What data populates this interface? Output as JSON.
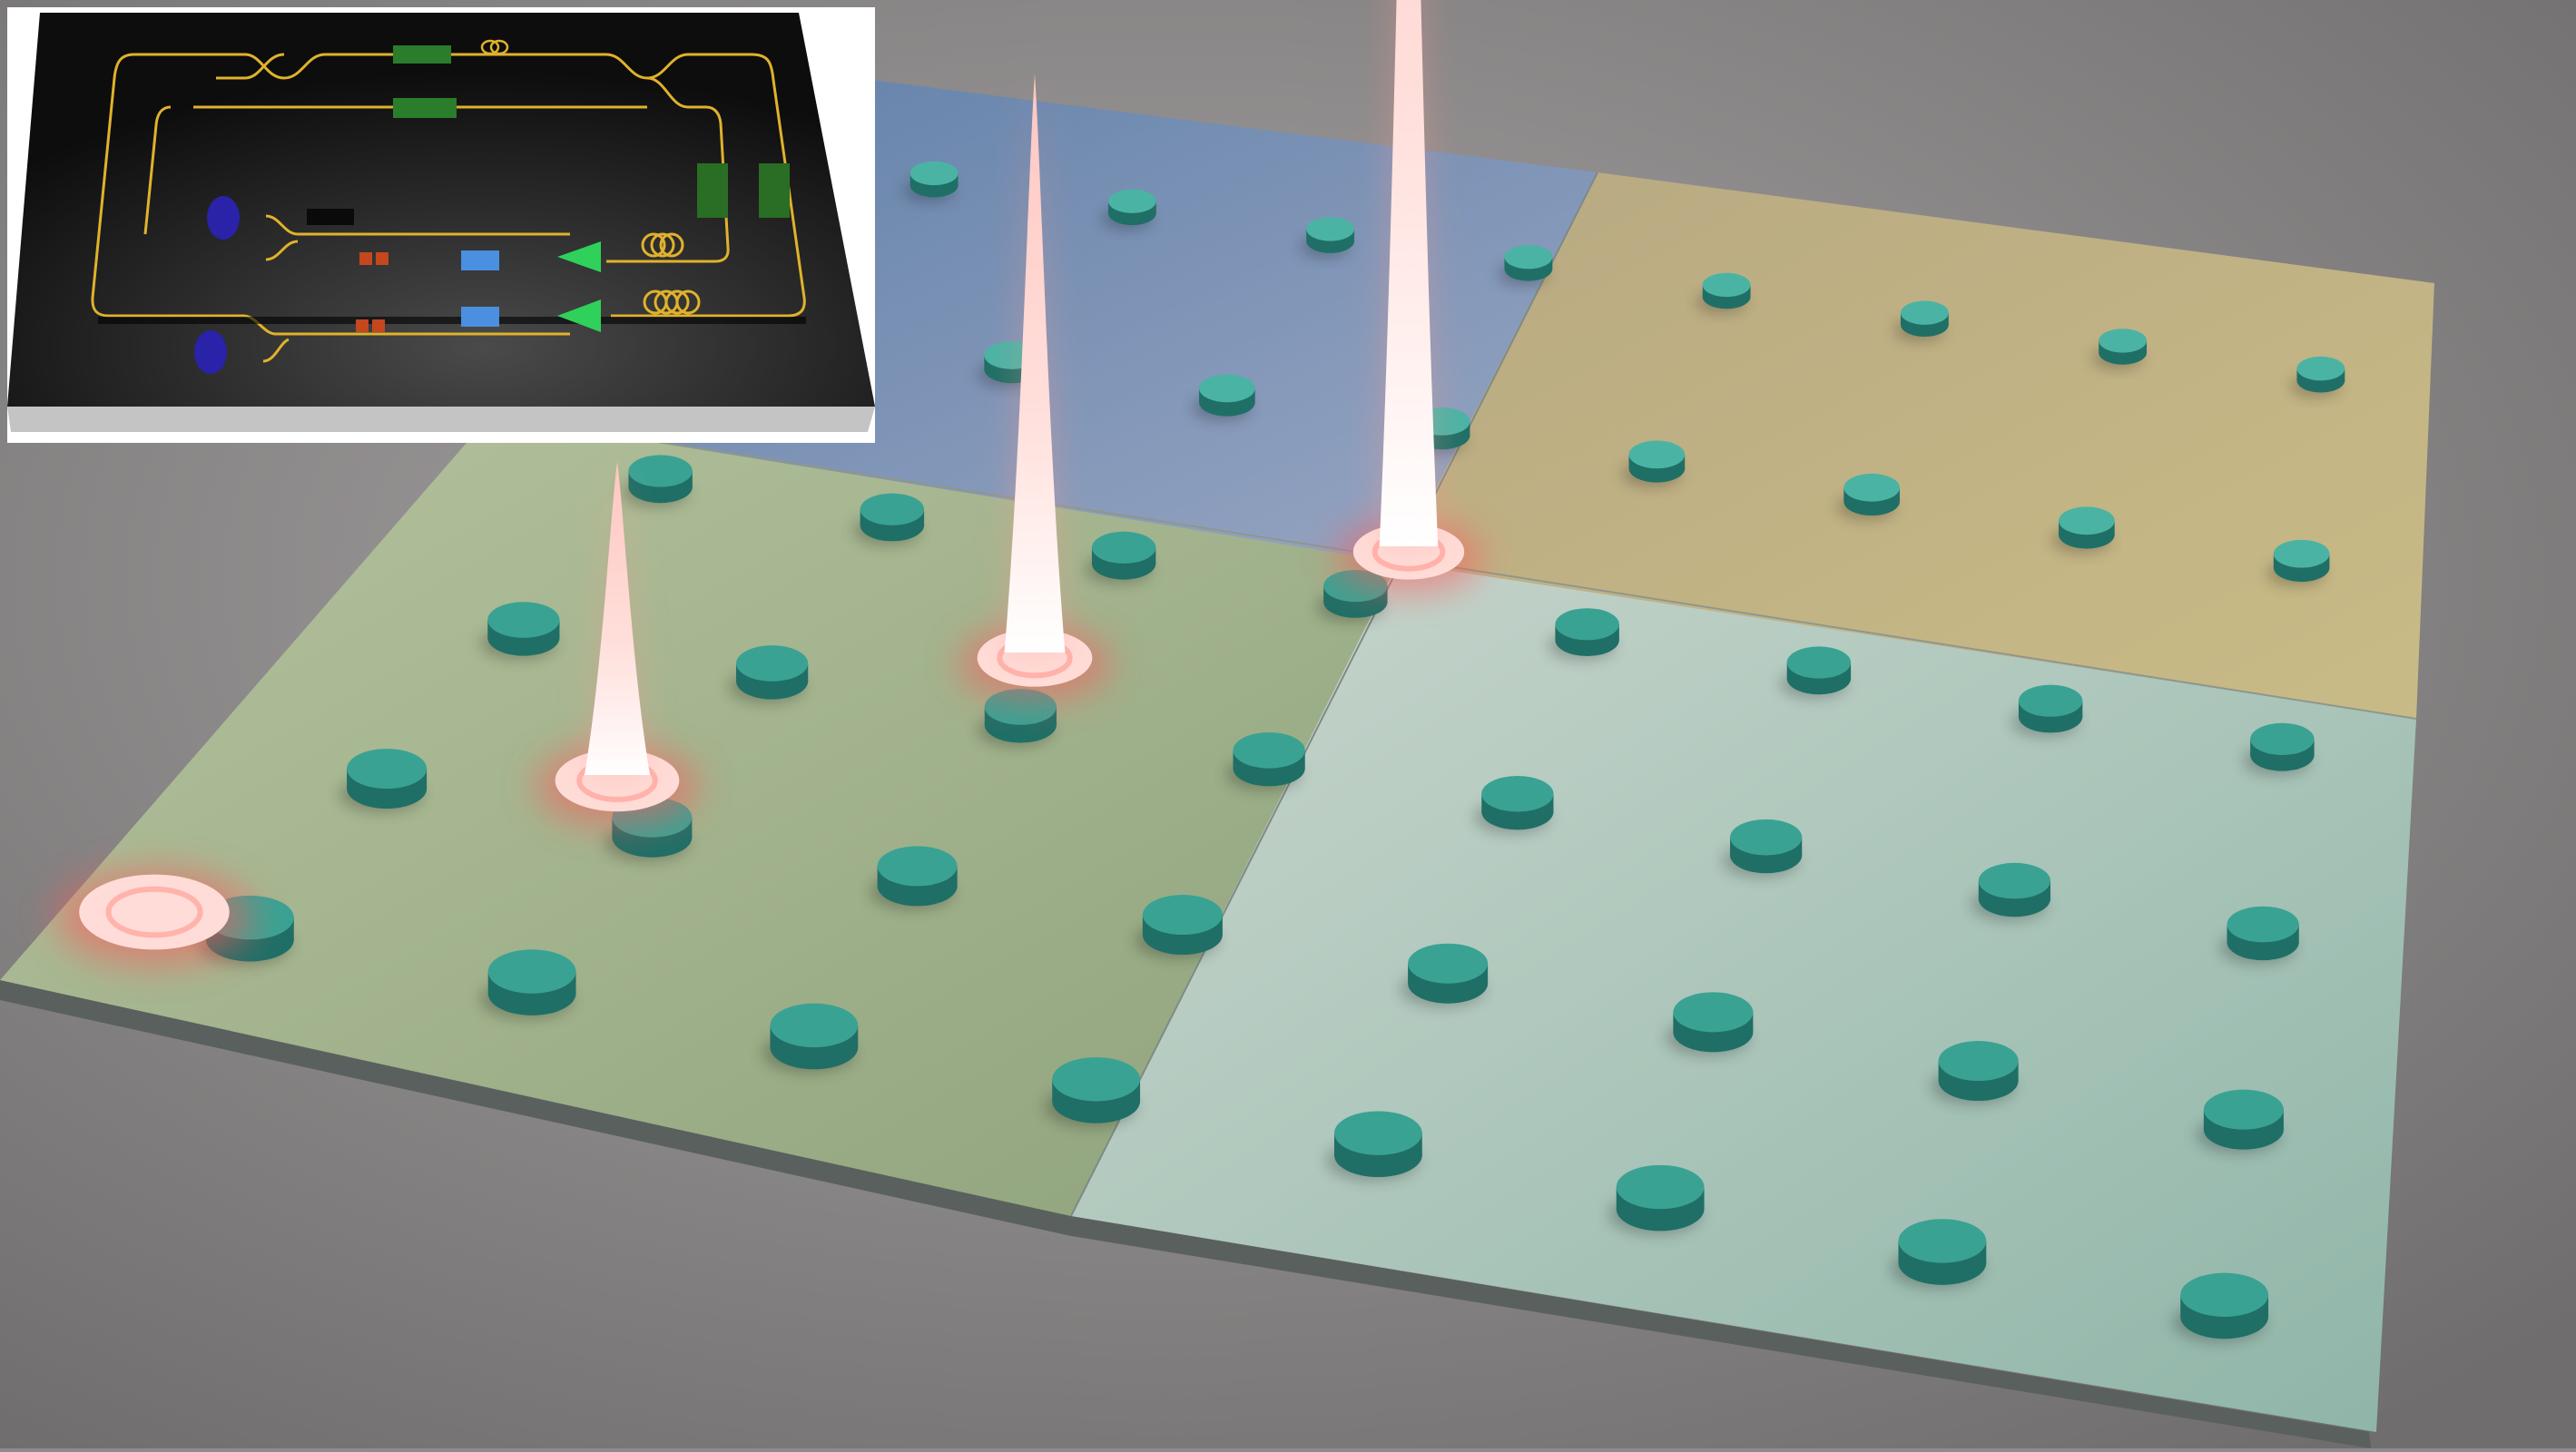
{
  "scene": {
    "description_free": true,
    "colors": {
      "background": "#8d8b8b",
      "plate_edge": "#5f6663",
      "region_top_left": "#6f86a6",
      "region_top_right": "#bdb07e",
      "region_bottom_left": "#a9b78c",
      "region_bottom_right": "#a8c3b6",
      "pillar": "#3da79a",
      "pillar_dark": "#1f6f66",
      "glow": "#ffd1cc",
      "glow_red": "#ff6b6b"
    },
    "peak_heights": [
      0.0,
      0.3,
      0.55,
      1.0
    ]
  },
  "inset": {
    "colors": {
      "frame": "#ffffff",
      "chip_top": "#121212",
      "chip_side": "#c9c9c9",
      "waveguide": "#e0b22c",
      "phase_shifter": "#2a7d2a",
      "detector": "#2a22a8",
      "modulator": "#c4471d",
      "filter": "#4a8fe0",
      "amplifier": "#2fd15a"
    },
    "icons": [
      "detector-icon",
      "amplifier-icon",
      "coil-icon",
      "phase-shifter-icon",
      "modulator-icon",
      "filter-icon"
    ]
  }
}
